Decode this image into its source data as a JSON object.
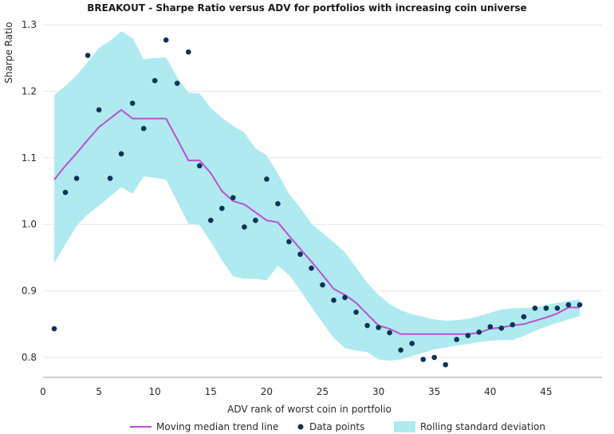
{
  "chart_data": {
    "type": "line",
    "title": "BREAKOUT - Sharpe Ratio versus ADV for portfolios with increasing coin universe",
    "xlabel": "ADV rank of worst coin in portfolio",
    "ylabel": "Sharpe Ratio",
    "xlim": [
      0,
      50
    ],
    "ylim": [
      0.77,
      1.3
    ],
    "xticks": [
      0,
      5,
      10,
      15,
      20,
      25,
      30,
      35,
      40,
      45
    ],
    "yticks": [
      0.8,
      0.9,
      1.0,
      1.1,
      1.2,
      1.3
    ],
    "xtick_labels": [
      "0",
      "5",
      "10",
      "15",
      "20",
      "25",
      "30",
      "35",
      "40",
      "45"
    ],
    "ytick_labels": [
      "0.8",
      "0.9",
      "1.0",
      "1.1",
      "1.2",
      "1.3"
    ],
    "grid": "horizontal",
    "legend_position": "bottom",
    "series": [
      {
        "name": "Moving median trend line",
        "kind": "line",
        "color": "#bf4fd0",
        "x": [
          1,
          2,
          3,
          4,
          5,
          6,
          7,
          8,
          9,
          10,
          11,
          12,
          13,
          14,
          15,
          16,
          17,
          18,
          19,
          20,
          21,
          22,
          23,
          24,
          25,
          26,
          27,
          28,
          29,
          30,
          31,
          32,
          33,
          34,
          35,
          36,
          37,
          38,
          39,
          40,
          41,
          42,
          43,
          44,
          45,
          46,
          47,
          48
        ],
        "y": [
          1.067,
          1.088,
          1.107,
          1.127,
          1.146,
          1.159,
          1.172,
          1.159,
          1.159,
          1.159,
          1.159,
          1.128,
          1.096,
          1.096,
          1.077,
          1.05,
          1.035,
          1.03,
          1.018,
          1.006,
          1.003,
          0.983,
          0.963,
          0.944,
          0.924,
          0.903,
          0.894,
          0.882,
          0.865,
          0.848,
          0.843,
          0.835,
          0.835,
          0.835,
          0.835,
          0.835,
          0.835,
          0.835,
          0.837,
          0.843,
          0.845,
          0.848,
          0.85,
          0.855,
          0.86,
          0.866,
          0.875,
          0.875
        ]
      },
      {
        "name": "Data points",
        "kind": "scatter",
        "color": "#0d3358",
        "x": [
          1,
          2,
          3,
          4,
          5,
          6,
          7,
          8,
          9,
          10,
          11,
          12,
          13,
          14,
          15,
          16,
          17,
          18,
          19,
          20,
          21,
          22,
          23,
          24,
          25,
          26,
          27,
          28,
          29,
          30,
          31,
          32,
          33,
          34,
          35,
          36,
          37,
          38,
          39,
          40,
          41,
          42,
          43,
          44,
          45,
          46,
          47,
          48
        ],
        "y": [
          0.843,
          1.048,
          1.069,
          1.254,
          1.172,
          1.069,
          1.106,
          1.182,
          1.144,
          1.216,
          1.277,
          1.212,
          1.259,
          1.088,
          1.006,
          1.024,
          1.04,
          0.996,
          1.006,
          1.068,
          1.031,
          0.974,
          0.955,
          0.934,
          0.909,
          0.886,
          0.89,
          0.868,
          0.848,
          0.845,
          0.837,
          0.811,
          0.821,
          0.797,
          0.8,
          0.789,
          0.827,
          0.833,
          0.838,
          0.846,
          0.844,
          0.849,
          0.861,
          0.874,
          0.874,
          0.874,
          0.879,
          0.879
        ]
      },
      {
        "name": "Rolling standard deviation",
        "kind": "band",
        "color": "#aeeaf0",
        "x": [
          1,
          2,
          3,
          4,
          5,
          6,
          7,
          8,
          9,
          10,
          11,
          12,
          13,
          14,
          15,
          16,
          17,
          18,
          19,
          20,
          21,
          22,
          23,
          24,
          25,
          26,
          27,
          28,
          29,
          30,
          31,
          32,
          33,
          34,
          35,
          36,
          37,
          38,
          39,
          40,
          41,
          42,
          43,
          44,
          45,
          46,
          47,
          48
        ],
        "upper": [
          1.194,
          1.208,
          1.224,
          1.244,
          1.265,
          1.276,
          1.29,
          1.28,
          1.248,
          1.25,
          1.251,
          1.221,
          1.198,
          1.197,
          1.175,
          1.16,
          1.148,
          1.138,
          1.114,
          1.104,
          1.076,
          1.046,
          1.025,
          1.001,
          0.987,
          0.973,
          0.958,
          0.935,
          0.912,
          0.894,
          0.88,
          0.871,
          0.865,
          0.861,
          0.857,
          0.855,
          0.856,
          0.858,
          0.862,
          0.867,
          0.872,
          0.874,
          0.874,
          0.875,
          0.879,
          0.882,
          0.885,
          0.887
        ],
        "lower": [
          0.942,
          0.97,
          0.998,
          1.015,
          1.028,
          1.042,
          1.056,
          1.046,
          1.072,
          1.07,
          1.067,
          1.034,
          1.001,
          0.999,
          0.974,
          0.946,
          0.922,
          0.918,
          0.918,
          0.916,
          0.938,
          0.924,
          0.901,
          0.876,
          0.852,
          0.829,
          0.814,
          0.81,
          0.808,
          0.797,
          0.795,
          0.797,
          0.802,
          0.807,
          0.812,
          0.815,
          0.818,
          0.82,
          0.823,
          0.825,
          0.826,
          0.826,
          0.832,
          0.84,
          0.846,
          0.852,
          0.857,
          0.862
        ]
      }
    ]
  }
}
